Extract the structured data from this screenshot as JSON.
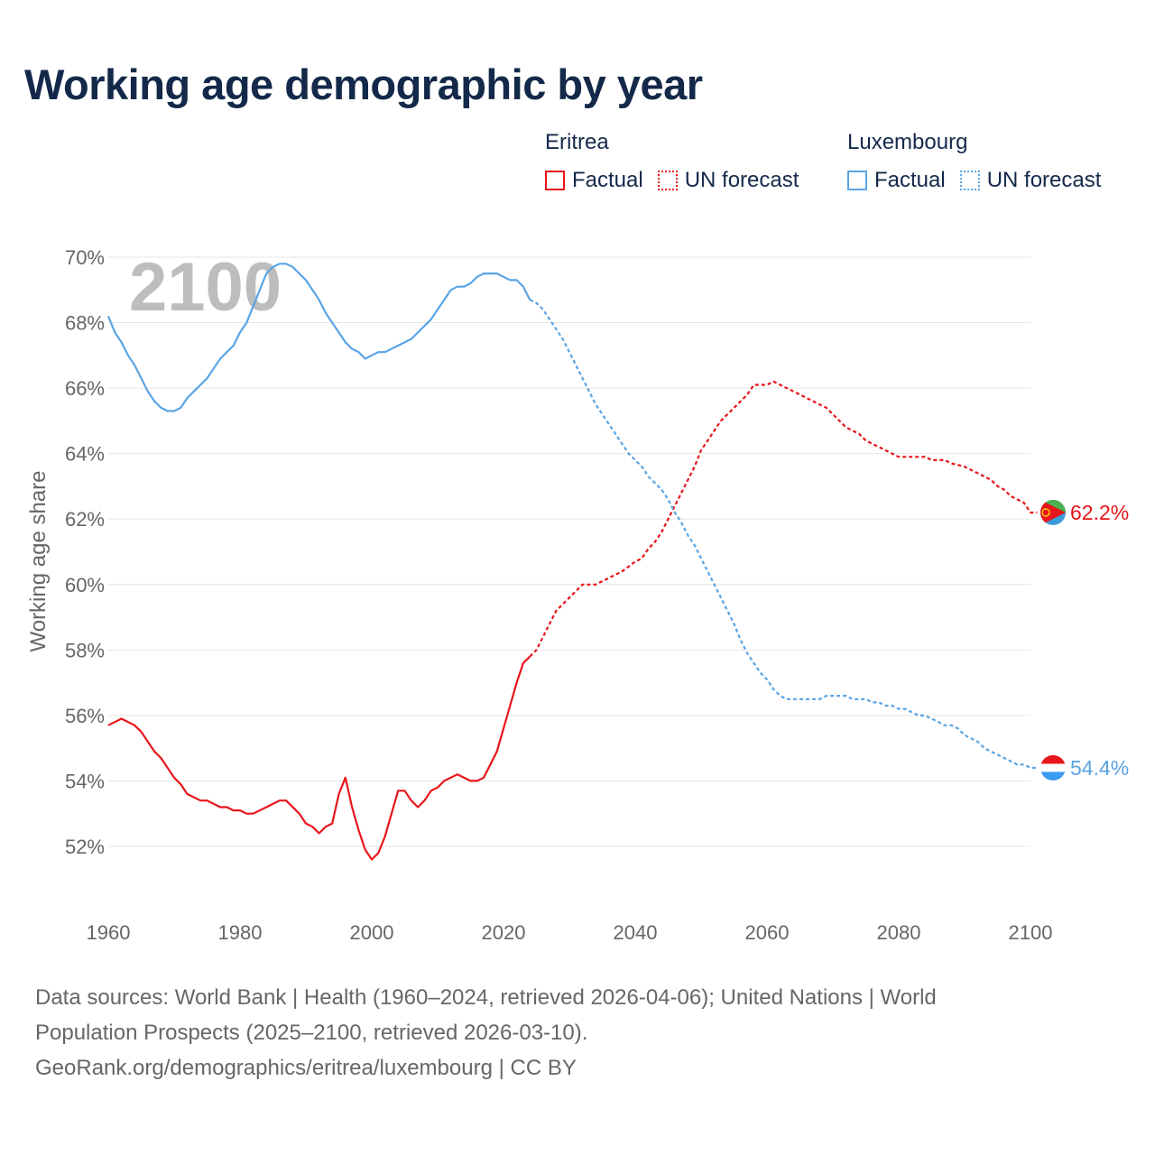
{
  "title": "Working age demographic by year",
  "legend": {
    "groups": [
      {
        "name": "Eritrea",
        "factual_label": "Factual",
        "forecast_label": "UN forecast",
        "color": "#e8151a"
      },
      {
        "name": "Luxembourg",
        "factual_label": "Factual",
        "forecast_label": "UN forecast",
        "color": "#5aa4e4"
      }
    ]
  },
  "footer": {
    "line1": "Data sources: World Bank | Health (1960–2024, retrieved 2026-04-06); United Nations | World",
    "line2": "Population Prospects (2025–2100, retrieved 2026-03-10).",
    "line3": "GeoRank.org/demographics/eritrea/luxembourg | CC BY"
  },
  "chart_data": {
    "type": "line",
    "title": "Working age demographic by year",
    "xlabel": "",
    "ylabel": "Working age share",
    "year_watermark": "2100",
    "xlim": [
      1960,
      2100
    ],
    "ylim": [
      50.5,
      70
    ],
    "x_ticks": [
      1960,
      1980,
      2000,
      2020,
      2040,
      2060,
      2080,
      2100
    ],
    "y_ticks": [
      52,
      54,
      56,
      58,
      60,
      62,
      64,
      66,
      68,
      70
    ],
    "y_tick_labels": [
      "52%",
      "54%",
      "56%",
      "58%",
      "60%",
      "62%",
      "64%",
      "66%",
      "68%",
      "70%"
    ],
    "grid": true,
    "forecast_start": 2024,
    "series": [
      {
        "name": "Eritrea",
        "color": "#e8151a",
        "end_label": "62.2%",
        "flag": "eritrea-flag",
        "points": [
          [
            1960,
            55.7
          ],
          [
            1962,
            55.9
          ],
          [
            1964,
            55.7
          ],
          [
            1965,
            55.5
          ],
          [
            1967,
            54.9
          ],
          [
            1968,
            54.7
          ],
          [
            1970,
            54.1
          ],
          [
            1971,
            53.9
          ],
          [
            1972,
            53.6
          ],
          [
            1974,
            53.4
          ],
          [
            1975,
            53.4
          ],
          [
            1977,
            53.2
          ],
          [
            1978,
            53.2
          ],
          [
            1979,
            53.1
          ],
          [
            1980,
            53.1
          ],
          [
            1981,
            53.0
          ],
          [
            1982,
            53.0
          ],
          [
            1984,
            53.2
          ],
          [
            1986,
            53.4
          ],
          [
            1987,
            53.4
          ],
          [
            1989,
            53.0
          ],
          [
            1990,
            52.7
          ],
          [
            1991,
            52.6
          ],
          [
            1992,
            52.4
          ],
          [
            1993,
            52.6
          ],
          [
            1994,
            52.7
          ],
          [
            1995,
            53.6
          ],
          [
            1996,
            54.1
          ],
          [
            1997,
            53.2
          ],
          [
            1998,
            52.5
          ],
          [
            1999,
            51.9
          ],
          [
            2000,
            51.6
          ],
          [
            2001,
            51.8
          ],
          [
            2002,
            52.3
          ],
          [
            2003,
            53.0
          ],
          [
            2004,
            53.7
          ],
          [
            2005,
            53.7
          ],
          [
            2006,
            53.4
          ],
          [
            2007,
            53.2
          ],
          [
            2008,
            53.4
          ],
          [
            2009,
            53.7
          ],
          [
            2010,
            53.8
          ],
          [
            2011,
            54.0
          ],
          [
            2013,
            54.2
          ],
          [
            2015,
            54.0
          ],
          [
            2016,
            54.0
          ],
          [
            2017,
            54.1
          ],
          [
            2019,
            54.9
          ],
          [
            2020,
            55.6
          ],
          [
            2021,
            56.3
          ],
          [
            2022,
            57.0
          ],
          [
            2023,
            57.6
          ],
          [
            2024,
            57.8
          ],
          [
            2025,
            58.0
          ],
          [
            2026,
            58.4
          ],
          [
            2027,
            58.8
          ],
          [
            2028,
            59.2
          ],
          [
            2030,
            59.6
          ],
          [
            2031,
            59.8
          ],
          [
            2032,
            60.0
          ],
          [
            2034,
            60.0
          ],
          [
            2035,
            60.1
          ],
          [
            2036,
            60.2
          ],
          [
            2038,
            60.4
          ],
          [
            2040,
            60.7
          ],
          [
            2041,
            60.8
          ],
          [
            2042,
            61.1
          ],
          [
            2043,
            61.3
          ],
          [
            2044,
            61.6
          ],
          [
            2045,
            62.0
          ],
          [
            2046,
            62.4
          ],
          [
            2047,
            62.8
          ],
          [
            2048,
            63.2
          ],
          [
            2049,
            63.6
          ],
          [
            2050,
            64.1
          ],
          [
            2051,
            64.4
          ],
          [
            2052,
            64.7
          ],
          [
            2053,
            65.0
          ],
          [
            2055,
            65.4
          ],
          [
            2057,
            65.8
          ],
          [
            2058,
            66.1
          ],
          [
            2059,
            66.1
          ],
          [
            2060,
            66.1
          ],
          [
            2061,
            66.2
          ],
          [
            2062,
            66.1
          ],
          [
            2064,
            65.9
          ],
          [
            2066,
            65.7
          ],
          [
            2068,
            65.5
          ],
          [
            2069,
            65.4
          ],
          [
            2070,
            65.2
          ],
          [
            2071,
            65.0
          ],
          [
            2072,
            64.8
          ],
          [
            2074,
            64.6
          ],
          [
            2075,
            64.4
          ],
          [
            2077,
            64.2
          ],
          [
            2079,
            64.0
          ],
          [
            2080,
            63.9
          ],
          [
            2082,
            63.9
          ],
          [
            2084,
            63.9
          ],
          [
            2085,
            63.8
          ],
          [
            2087,
            63.8
          ],
          [
            2088,
            63.7
          ],
          [
            2090,
            63.6
          ],
          [
            2091,
            63.5
          ],
          [
            2093,
            63.3
          ],
          [
            2094,
            63.2
          ],
          [
            2095,
            63.0
          ],
          [
            2096,
            62.9
          ],
          [
            2097,
            62.7
          ],
          [
            2099,
            62.5
          ],
          [
            2100,
            62.2
          ],
          [
            2101,
            62.2
          ]
        ]
      },
      {
        "name": "Luxembourg",
        "color": "#5aa4e4",
        "end_label": "54.4%",
        "flag": "luxembourg-flag",
        "points": [
          [
            1960,
            68.2
          ],
          [
            1961,
            67.7
          ],
          [
            1962,
            67.4
          ],
          [
            1963,
            67.0
          ],
          [
            1964,
            66.7
          ],
          [
            1965,
            66.3
          ],
          [
            1966,
            65.9
          ],
          [
            1967,
            65.6
          ],
          [
            1968,
            65.4
          ],
          [
            1969,
            65.3
          ],
          [
            1970,
            65.3
          ],
          [
            1971,
            65.4
          ],
          [
            1972,
            65.7
          ],
          [
            1973,
            65.9
          ],
          [
            1974,
            66.1
          ],
          [
            1975,
            66.3
          ],
          [
            1976,
            66.6
          ],
          [
            1977,
            66.9
          ],
          [
            1978,
            67.1
          ],
          [
            1979,
            67.3
          ],
          [
            1980,
            67.7
          ],
          [
            1981,
            68.0
          ],
          [
            1982,
            68.5
          ],
          [
            1983,
            69.0
          ],
          [
            1984,
            69.5
          ],
          [
            1985,
            69.7
          ],
          [
            1986,
            69.8
          ],
          [
            1987,
            69.8
          ],
          [
            1988,
            69.7
          ],
          [
            1989,
            69.5
          ],
          [
            1990,
            69.3
          ],
          [
            1991,
            69.0
          ],
          [
            1992,
            68.7
          ],
          [
            1993,
            68.3
          ],
          [
            1994,
            68.0
          ],
          [
            1995,
            67.7
          ],
          [
            1996,
            67.4
          ],
          [
            1997,
            67.2
          ],
          [
            1998,
            67.1
          ],
          [
            1999,
            66.9
          ],
          [
            2000,
            67.0
          ],
          [
            2001,
            67.1
          ],
          [
            2002,
            67.1
          ],
          [
            2003,
            67.2
          ],
          [
            2004,
            67.3
          ],
          [
            2005,
            67.4
          ],
          [
            2006,
            67.5
          ],
          [
            2007,
            67.7
          ],
          [
            2008,
            67.9
          ],
          [
            2009,
            68.1
          ],
          [
            2010,
            68.4
          ],
          [
            2011,
            68.7
          ],
          [
            2012,
            69.0
          ],
          [
            2013,
            69.1
          ],
          [
            2014,
            69.1
          ],
          [
            2015,
            69.2
          ],
          [
            2016,
            69.4
          ],
          [
            2017,
            69.5
          ],
          [
            2018,
            69.5
          ],
          [
            2019,
            69.5
          ],
          [
            2020,
            69.4
          ],
          [
            2021,
            69.3
          ],
          [
            2022,
            69.3
          ],
          [
            2023,
            69.1
          ],
          [
            2024,
            68.7
          ],
          [
            2025,
            68.6
          ],
          [
            2026,
            68.4
          ],
          [
            2027,
            68.1
          ],
          [
            2028,
            67.8
          ],
          [
            2029,
            67.5
          ],
          [
            2030,
            67.1
          ],
          [
            2031,
            66.7
          ],
          [
            2032,
            66.3
          ],
          [
            2033,
            65.9
          ],
          [
            2034,
            65.5
          ],
          [
            2035,
            65.2
          ],
          [
            2036,
            64.9
          ],
          [
            2037,
            64.6
          ],
          [
            2038,
            64.3
          ],
          [
            2039,
            64.0
          ],
          [
            2040,
            63.8
          ],
          [
            2041,
            63.6
          ],
          [
            2042,
            63.3
          ],
          [
            2043,
            63.1
          ],
          [
            2044,
            62.9
          ],
          [
            2045,
            62.6
          ],
          [
            2046,
            62.2
          ],
          [
            2047,
            61.9
          ],
          [
            2048,
            61.5
          ],
          [
            2049,
            61.2
          ],
          [
            2050,
            60.8
          ],
          [
            2051,
            60.4
          ],
          [
            2052,
            60.0
          ],
          [
            2053,
            59.6
          ],
          [
            2054,
            59.2
          ],
          [
            2055,
            58.8
          ],
          [
            2056,
            58.3
          ],
          [
            2057,
            57.9
          ],
          [
            2058,
            57.6
          ],
          [
            2059,
            57.3
          ],
          [
            2060,
            57.1
          ],
          [
            2061,
            56.8
          ],
          [
            2062,
            56.6
          ],
          [
            2063,
            56.5
          ],
          [
            2064,
            56.5
          ],
          [
            2065,
            56.5
          ],
          [
            2066,
            56.5
          ],
          [
            2067,
            56.5
          ],
          [
            2068,
            56.5
          ],
          [
            2069,
            56.6
          ],
          [
            2070,
            56.6
          ],
          [
            2071,
            56.6
          ],
          [
            2072,
            56.6
          ],
          [
            2073,
            56.5
          ],
          [
            2074,
            56.5
          ],
          [
            2075,
            56.5
          ],
          [
            2076,
            56.4
          ],
          [
            2077,
            56.4
          ],
          [
            2078,
            56.3
          ],
          [
            2079,
            56.3
          ],
          [
            2080,
            56.2
          ],
          [
            2081,
            56.2
          ],
          [
            2082,
            56.1
          ],
          [
            2083,
            56.0
          ],
          [
            2084,
            56.0
          ],
          [
            2085,
            55.9
          ],
          [
            2086,
            55.8
          ],
          [
            2087,
            55.7
          ],
          [
            2088,
            55.7
          ],
          [
            2089,
            55.6
          ],
          [
            2090,
            55.4
          ],
          [
            2091,
            55.3
          ],
          [
            2092,
            55.2
          ],
          [
            2093,
            55.0
          ],
          [
            2094,
            54.9
          ],
          [
            2095,
            54.8
          ],
          [
            2096,
            54.7
          ],
          [
            2097,
            54.6
          ],
          [
            2098,
            54.5
          ],
          [
            2099,
            54.5
          ],
          [
            2100,
            54.4
          ],
          [
            2101,
            54.4
          ]
        ]
      }
    ]
  }
}
